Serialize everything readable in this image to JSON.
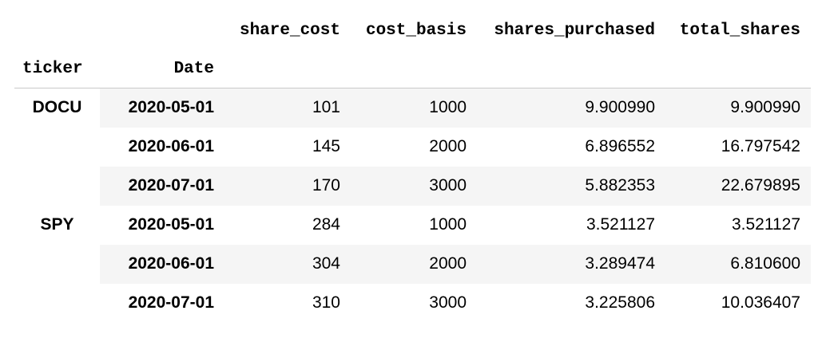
{
  "table": {
    "columns": [
      "share_cost",
      "cost_basis",
      "shares_purchased",
      "total_shares"
    ],
    "index_names": [
      "ticker",
      "Date"
    ],
    "groups": [
      {
        "ticker": "DOCU",
        "rows": [
          {
            "date": "2020-05-01",
            "share_cost": "101",
            "cost_basis": "1000",
            "shares_purchased": "9.900990",
            "total_shares": "9.900990"
          },
          {
            "date": "2020-06-01",
            "share_cost": "145",
            "cost_basis": "2000",
            "shares_purchased": "6.896552",
            "total_shares": "16.797542"
          },
          {
            "date": "2020-07-01",
            "share_cost": "170",
            "cost_basis": "3000",
            "shares_purchased": "5.882353",
            "total_shares": "22.679895"
          }
        ]
      },
      {
        "ticker": "SPY",
        "rows": [
          {
            "date": "2020-05-01",
            "share_cost": "284",
            "cost_basis": "1000",
            "shares_purchased": "3.521127",
            "total_shares": "3.521127"
          },
          {
            "date": "2020-06-01",
            "share_cost": "304",
            "cost_basis": "2000",
            "shares_purchased": "3.289474",
            "total_shares": "6.810600"
          },
          {
            "date": "2020-07-01",
            "share_cost": "310",
            "cost_basis": "3000",
            "shares_purchased": "3.225806",
            "total_shares": "10.036407"
          }
        ]
      }
    ]
  },
  "colors": {
    "row_shade": "#f5f5f5",
    "header_rule": "#c9c9c9"
  }
}
